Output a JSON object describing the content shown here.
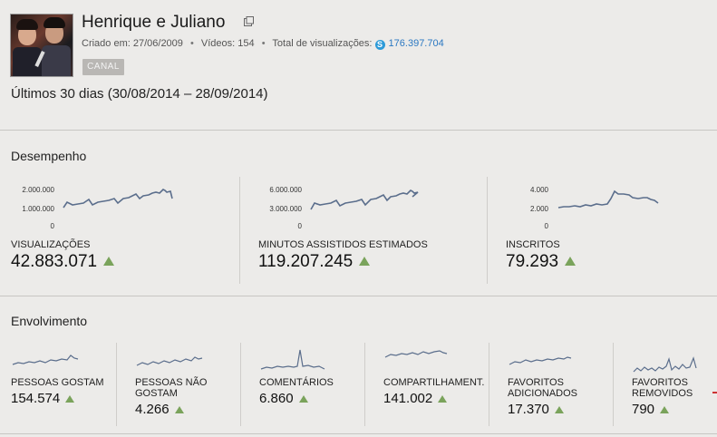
{
  "channel": {
    "name": "Henrique e Juliano",
    "created_label": "Criado em:",
    "created_date": "27/06/2009",
    "videos_label": "Vídeos:",
    "videos_count": "154",
    "views_label": "Total de visualizações:",
    "views_total": "176.397.704",
    "badge": "CANAL"
  },
  "period": "Últimos 30 dias (30/08/2014 – 28/09/2014)",
  "performance": {
    "title": "Desempenho",
    "metrics": [
      {
        "label": "VISUALIZAÇÕES",
        "value": "42.883.071",
        "ticks": [
          "2.000.000",
          "1.000.000",
          "0"
        ],
        "trend": "up"
      },
      {
        "label": "MINUTOS ASSISTIDOS ESTIMADOS",
        "value": "119.207.245",
        "ticks": [
          "6.000.000",
          "3.000.000",
          "0"
        ],
        "trend": "up"
      },
      {
        "label": "INSCRITOS",
        "value": "79.293",
        "ticks": [
          "4.000",
          "2.000",
          "0"
        ],
        "trend": "up"
      }
    ]
  },
  "engagement": {
    "title": "Envolvimento",
    "metrics": [
      {
        "label1": "PESSOAS GOSTAM",
        "label2": "",
        "value": "154.574",
        "trend": "up"
      },
      {
        "label1": "PESSOAS NÃO",
        "label2": "GOSTAM",
        "value": "4.266",
        "trend": "up"
      },
      {
        "label1": "COMENTÁRIOS",
        "label2": "",
        "value": "6.860",
        "trend": "up"
      },
      {
        "label1": "COMPARTILHAMENT.",
        "label2": "",
        "value": "141.002",
        "trend": "up"
      },
      {
        "label1": "FAVORITOS",
        "label2": "ADICIONADOS",
        "value": "17.370",
        "trend": "up"
      },
      {
        "label1": "FAVORITOS",
        "label2": "REMOVIDOS",
        "value": "790",
        "trend": "up"
      }
    ]
  },
  "colors": {
    "sparkline": "#5b6e8c",
    "trend_up": "#7aa35b",
    "link": "#2b78c2"
  }
}
